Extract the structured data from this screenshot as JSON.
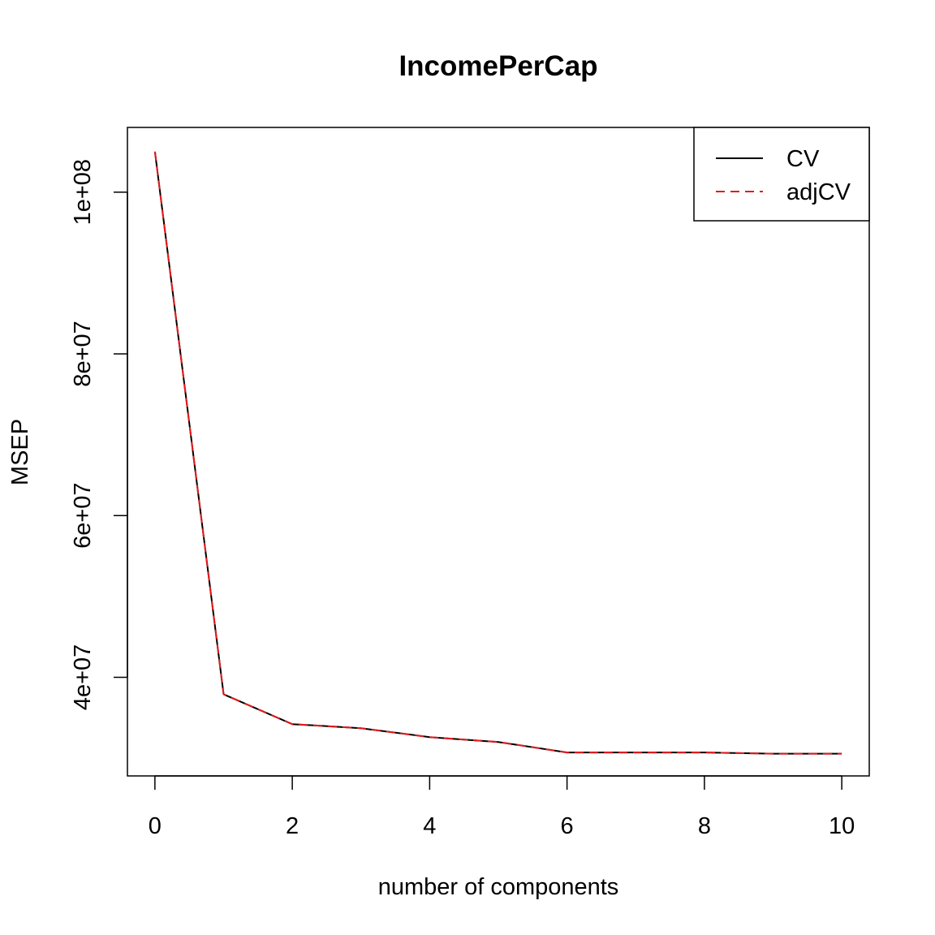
{
  "chart_data": {
    "type": "line",
    "title": "IncomePerCap",
    "xlabel": "number of components",
    "ylabel": "MSEP",
    "x": [
      0,
      1,
      2,
      3,
      4,
      5,
      6,
      7,
      8,
      9,
      10
    ],
    "series": [
      {
        "name": "CV",
        "color": "#000000",
        "dash": "solid",
        "values": [
          105000000,
          37900000,
          34200000,
          33700000,
          32600000,
          32000000,
          30700000,
          30700000,
          30700000,
          30550000,
          30550000
        ]
      },
      {
        "name": "adjCV",
        "color": "#e41a1c",
        "dash": "dashed",
        "values": [
          105000000,
          37900000,
          34200000,
          33700000,
          32600000,
          32000000,
          30700000,
          30700000,
          30700000,
          30550000,
          30550000
        ]
      }
    ],
    "xlim": [
      -0.4,
      10.4
    ],
    "ylim": [
      27800000,
      108000000
    ],
    "x_ticks": [
      0,
      2,
      4,
      6,
      8,
      10
    ],
    "x_tick_labels": [
      "0",
      "2",
      "4",
      "6",
      "8",
      "10"
    ],
    "y_ticks": [
      40000000,
      60000000,
      80000000,
      100000000
    ],
    "y_tick_labels": [
      "4e+07",
      "6e+07",
      "8e+07",
      "1e+08"
    ],
    "legend_position": "top-right",
    "grid": false
  }
}
